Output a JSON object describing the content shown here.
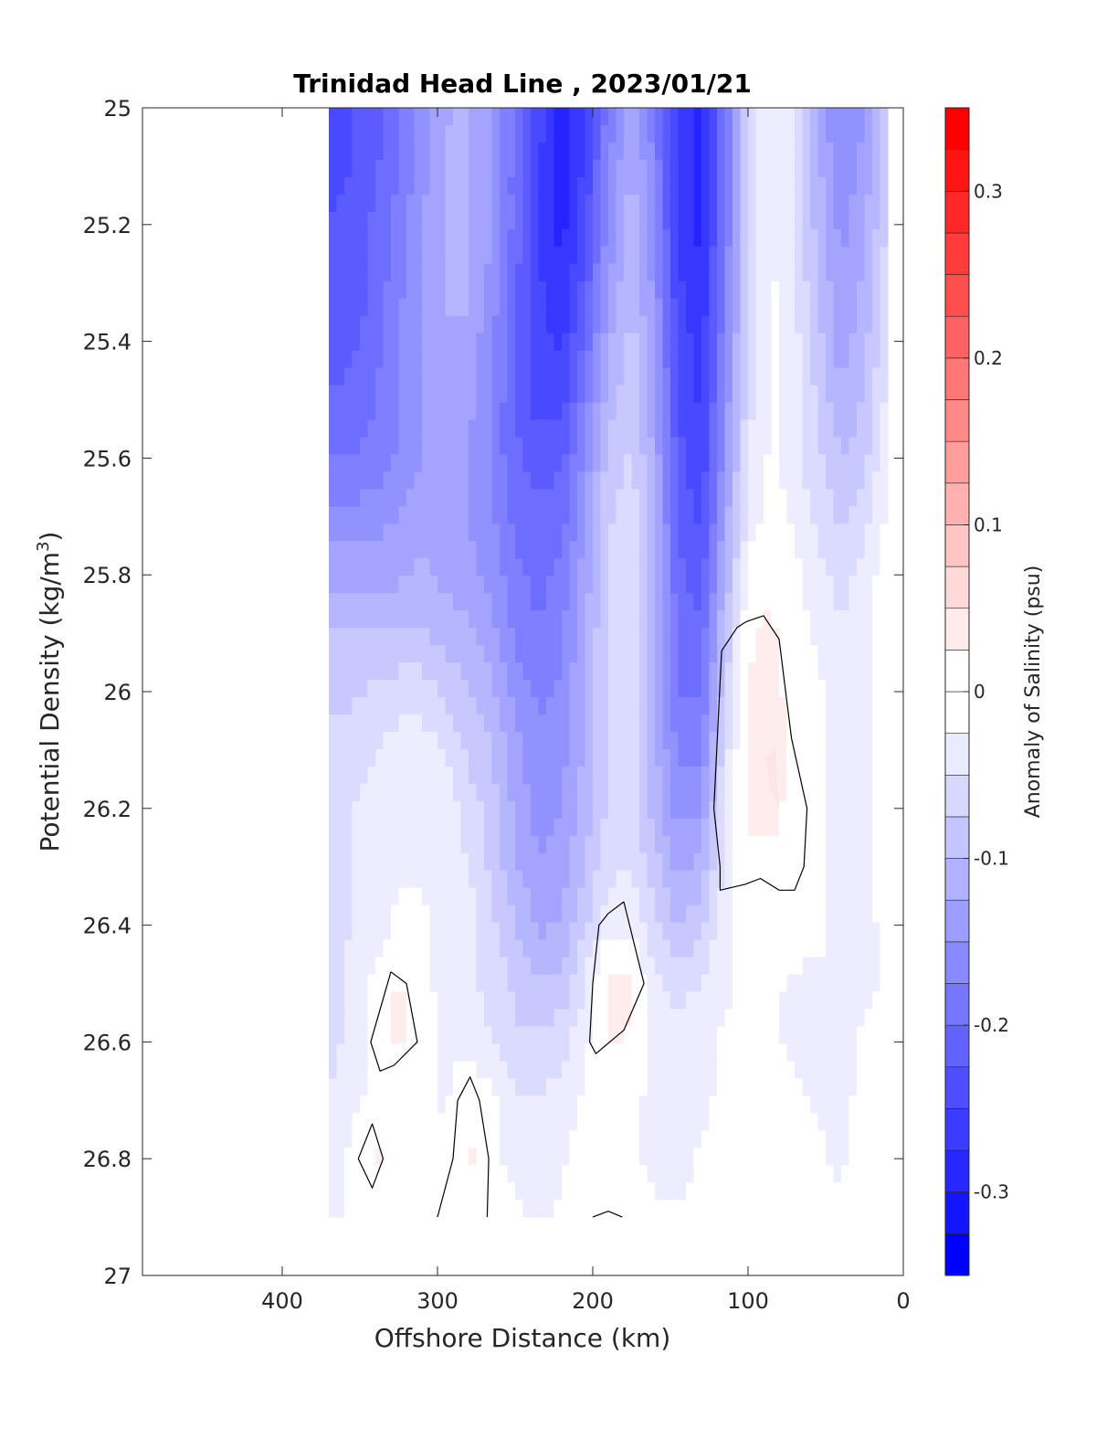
{
  "chart_data": {
    "type": "heatmap",
    "subtype": "contour-section",
    "title": "Trinidad Head Line , 2023/01/21",
    "xlabel": "Offshore Distance (km)",
    "ylabel_main": "Potential Density (kg/m",
    "ylabel_sup": "3",
    "ylabel_close": ")",
    "colorbar_label": "Anomaly of Salinity (psu)",
    "xlim": [
      490,
      0
    ],
    "x_reversed": true,
    "ylim": [
      25,
      27
    ],
    "y_reversed": true,
    "x_ticks": [
      {
        "value": 400,
        "label": "400"
      },
      {
        "value": 300,
        "label": "300"
      },
      {
        "value": 200,
        "label": "200"
      },
      {
        "value": 100,
        "label": "100"
      },
      {
        "value": 0,
        "label": "0"
      }
    ],
    "y_ticks": [
      {
        "value": 25.0,
        "label": "25"
      },
      {
        "value": 25.2,
        "label": "25.2"
      },
      {
        "value": 25.4,
        "label": "25.4"
      },
      {
        "value": 25.6,
        "label": "25.6"
      },
      {
        "value": 25.8,
        "label": "25.8"
      },
      {
        "value": 26.0,
        "label": "26"
      },
      {
        "value": 26.2,
        "label": "26.2"
      },
      {
        "value": 26.4,
        "label": "26.4"
      },
      {
        "value": 26.6,
        "label": "26.6"
      },
      {
        "value": 26.8,
        "label": "26.8"
      },
      {
        "value": 27.0,
        "label": "27"
      }
    ],
    "colorbar": {
      "clim": [
        -0.35,
        0.35
      ],
      "step": 0.025,
      "ticks": [
        {
          "value": 0.3,
          "label": "0.3"
        },
        {
          "value": 0.2,
          "label": "0.2"
        },
        {
          "value": 0.1,
          "label": "0.1"
        },
        {
          "value": 0.0,
          "label": "0"
        },
        {
          "value": -0.1,
          "label": "-0.1"
        },
        {
          "value": -0.2,
          "label": "-0.2"
        },
        {
          "value": -0.3,
          "label": "-0.3"
        }
      ],
      "colormap": "blue-white-red",
      "low_color": "#0000ff",
      "mid_color": "#ffffff",
      "high_color": "#ff0000"
    },
    "data_extent": {
      "x_offshore_km": 370,
      "x_coastal_km": 10,
      "density_bottom": 26.9
    },
    "station_x_km": [
      370,
      355,
      340,
      325,
      310,
      295,
      280,
      265,
      250,
      235,
      220,
      205,
      190,
      175,
      160,
      145,
      130,
      115,
      100,
      85,
      70,
      55,
      40,
      25,
      10
    ],
    "density_levels": [
      25.0,
      25.1,
      25.2,
      25.3,
      25.4,
      25.5,
      25.6,
      25.7,
      25.8,
      25.9,
      26.0,
      26.1,
      26.2,
      26.3,
      26.4,
      26.5,
      26.6,
      26.7,
      26.8,
      26.9
    ],
    "anomaly_profiles": [
      {
        "density": 25.0,
        "values": [
          -0.26,
          -0.25,
          -0.23,
          -0.2,
          -0.16,
          -0.13,
          -0.12,
          -0.15,
          -0.2,
          -0.26,
          -0.31,
          -0.27,
          -0.19,
          -0.13,
          -0.19,
          -0.29,
          -0.31,
          -0.2,
          -0.07,
          -0.02,
          -0.05,
          -0.13,
          -0.18,
          -0.15,
          -0.08
        ]
      },
      {
        "density": 25.1,
        "values": [
          -0.26,
          -0.25,
          -0.23,
          -0.2,
          -0.16,
          -0.12,
          -0.12,
          -0.15,
          -0.21,
          -0.27,
          -0.32,
          -0.27,
          -0.18,
          -0.12,
          -0.18,
          -0.29,
          -0.31,
          -0.2,
          -0.07,
          -0.02,
          -0.05,
          -0.12,
          -0.17,
          -0.14,
          -0.07
        ]
      },
      {
        "density": 25.2,
        "values": [
          -0.25,
          -0.24,
          -0.22,
          -0.19,
          -0.15,
          -0.12,
          -0.12,
          -0.15,
          -0.21,
          -0.27,
          -0.31,
          -0.26,
          -0.17,
          -0.11,
          -0.17,
          -0.28,
          -0.31,
          -0.2,
          -0.07,
          -0.02,
          -0.05,
          -0.11,
          -0.16,
          -0.13,
          -0.07
        ]
      },
      {
        "density": 25.3,
        "values": [
          -0.25,
          -0.24,
          -0.22,
          -0.18,
          -0.15,
          -0.12,
          -0.12,
          -0.16,
          -0.22,
          -0.27,
          -0.3,
          -0.24,
          -0.15,
          -0.1,
          -0.16,
          -0.27,
          -0.3,
          -0.19,
          -0.07,
          -0.02,
          -0.05,
          -0.1,
          -0.15,
          -0.12,
          -0.06
        ]
      },
      {
        "density": 25.4,
        "values": [
          -0.24,
          -0.23,
          -0.21,
          -0.18,
          -0.15,
          -0.13,
          -0.13,
          -0.17,
          -0.22,
          -0.27,
          -0.28,
          -0.22,
          -0.13,
          -0.09,
          -0.15,
          -0.26,
          -0.29,
          -0.18,
          -0.07,
          -0.02,
          -0.04,
          -0.09,
          -0.14,
          -0.11,
          -0.05
        ]
      },
      {
        "density": 25.5,
        "values": [
          -0.22,
          -0.22,
          -0.2,
          -0.18,
          -0.15,
          -0.14,
          -0.14,
          -0.18,
          -0.22,
          -0.26,
          -0.26,
          -0.19,
          -0.11,
          -0.08,
          -0.14,
          -0.25,
          -0.28,
          -0.17,
          -0.06,
          -0.02,
          -0.04,
          -0.08,
          -0.12,
          -0.1,
          -0.04
        ]
      },
      {
        "density": 25.6,
        "values": [
          -0.2,
          -0.2,
          -0.19,
          -0.17,
          -0.15,
          -0.14,
          -0.15,
          -0.18,
          -0.22,
          -0.24,
          -0.23,
          -0.17,
          -0.09,
          -0.07,
          -0.13,
          -0.24,
          -0.27,
          -0.16,
          -0.05,
          -0.02,
          -0.04,
          -0.07,
          -0.1,
          -0.08,
          -0.03
        ]
      },
      {
        "density": 25.7,
        "values": [
          -0.17,
          -0.17,
          -0.16,
          -0.15,
          -0.14,
          -0.14,
          -0.15,
          -0.17,
          -0.21,
          -0.22,
          -0.21,
          -0.15,
          -0.08,
          -0.06,
          -0.12,
          -0.23,
          -0.26,
          -0.14,
          -0.04,
          -0.01,
          -0.03,
          -0.06,
          -0.08,
          -0.06,
          -0.02
        ]
      },
      {
        "density": 25.8,
        "values": [
          -0.13,
          -0.13,
          -0.13,
          -0.13,
          -0.12,
          -0.13,
          -0.14,
          -0.16,
          -0.19,
          -0.21,
          -0.19,
          -0.14,
          -0.07,
          -0.05,
          -0.12,
          -0.22,
          -0.24,
          -0.12,
          -0.02,
          0.0,
          -0.02,
          -0.04,
          -0.06,
          -0.04,
          -0.01
        ]
      },
      {
        "density": 25.9,
        "values": [
          -0.1,
          -0.1,
          -0.1,
          -0.1,
          -0.1,
          -0.11,
          -0.12,
          -0.14,
          -0.18,
          -0.2,
          -0.18,
          -0.13,
          -0.07,
          -0.05,
          -0.12,
          -0.21,
          -0.22,
          -0.1,
          0.0,
          0.01,
          -0.01,
          -0.03,
          -0.05,
          -0.03,
          -0.01
        ]
      },
      {
        "density": 26.0,
        "values": [
          -0.08,
          -0.08,
          -0.07,
          -0.06,
          -0.06,
          -0.08,
          -0.1,
          -0.12,
          -0.16,
          -0.18,
          -0.17,
          -0.12,
          -0.07,
          -0.05,
          -0.12,
          -0.2,
          -0.2,
          -0.08,
          0.01,
          0.01,
          0.0,
          -0.02,
          -0.04,
          -0.03,
          -0.01
        ]
      },
      {
        "density": 26.1,
        "values": [
          -0.07,
          -0.06,
          -0.05,
          -0.04,
          -0.04,
          -0.05,
          -0.08,
          -0.1,
          -0.14,
          -0.17,
          -0.16,
          -0.12,
          -0.07,
          -0.06,
          -0.12,
          -0.18,
          -0.18,
          -0.06,
          0.01,
          0.02,
          0.0,
          -0.02,
          -0.03,
          -0.03,
          -0.01
        ]
      },
      {
        "density": 26.2,
        "values": [
          -0.06,
          -0.05,
          -0.04,
          -0.03,
          -0.03,
          -0.04,
          -0.06,
          -0.09,
          -0.13,
          -0.16,
          -0.15,
          -0.11,
          -0.07,
          -0.06,
          -0.11,
          -0.16,
          -0.15,
          -0.05,
          0.01,
          0.01,
          0.0,
          -0.02,
          -0.03,
          -0.03,
          -0.01
        ]
      },
      {
        "density": 26.3,
        "values": [
          -0.06,
          -0.05,
          -0.04,
          -0.03,
          -0.03,
          -0.03,
          -0.05,
          -0.08,
          -0.12,
          -0.15,
          -0.14,
          -0.1,
          -0.06,
          -0.05,
          -0.09,
          -0.13,
          -0.12,
          -0.04,
          0.0,
          0.0,
          -0.01,
          -0.02,
          -0.03,
          -0.03,
          -0.01
        ]
      },
      {
        "density": 26.4,
        "values": [
          -0.06,
          -0.05,
          -0.04,
          -0.02,
          -0.02,
          -0.03,
          -0.04,
          -0.07,
          -0.1,
          -0.13,
          -0.12,
          -0.08,
          -0.03,
          -0.03,
          -0.07,
          -0.1,
          -0.08,
          -0.03,
          -0.01,
          0.0,
          -0.01,
          -0.02,
          -0.03,
          -0.03,
          -0.02
        ]
      },
      {
        "density": 26.5,
        "values": [
          -0.06,
          -0.04,
          -0.02,
          0.01,
          -0.02,
          -0.03,
          -0.04,
          -0.06,
          -0.08,
          -0.1,
          -0.09,
          -0.05,
          0.01,
          0.01,
          -0.04,
          -0.06,
          -0.05,
          -0.03,
          -0.02,
          -0.02,
          -0.03,
          -0.03,
          -0.03,
          -0.03,
          -0.02
        ]
      },
      {
        "density": 26.6,
        "values": [
          -0.06,
          -0.04,
          -0.01,
          0.01,
          -0.01,
          -0.03,
          -0.03,
          -0.05,
          -0.07,
          -0.07,
          -0.06,
          -0.03,
          0.01,
          0.0,
          -0.03,
          -0.04,
          -0.03,
          -0.02,
          -0.02,
          -0.02,
          -0.03,
          -0.03,
          -0.03,
          -0.02,
          -0.02
        ]
      },
      {
        "density": 26.7,
        "values": [
          -0.05,
          -0.03,
          -0.02,
          -0.01,
          -0.02,
          -0.03,
          0.0,
          -0.02,
          -0.05,
          -0.05,
          -0.04,
          -0.02,
          -0.01,
          -0.02,
          -0.03,
          -0.04,
          -0.03,
          -0.02,
          -0.02,
          -0.02,
          -0.02,
          -0.03,
          -0.03,
          -0.02,
          -0.01
        ]
      },
      {
        "density": 26.8,
        "values": [
          -0.04,
          -0.02,
          0.01,
          -0.01,
          -0.01,
          -0.02,
          0.01,
          -0.01,
          -0.04,
          -0.04,
          -0.03,
          -0.01,
          -0.01,
          -0.02,
          -0.03,
          -0.04,
          -0.02,
          -0.02,
          -0.01,
          -0.01,
          -0.01,
          -0.02,
          -0.03,
          -0.01,
          -0.01
        ]
      },
      {
        "density": 26.9,
        "values": [
          -0.03,
          -0.02,
          -0.01,
          -0.01,
          -0.01,
          -0.01,
          0.0,
          0.0,
          -0.02,
          -0.03,
          -0.02,
          -0.01,
          0.0,
          -0.01,
          -0.02,
          -0.02,
          -0.02,
          -0.01,
          -0.01,
          -0.01,
          -0.01,
          -0.01,
          -0.02,
          -0.01,
          -0.01
        ]
      }
    ],
    "zero_contours": [
      [
        [
          101,
          25.88
        ],
        [
          90,
          25.87
        ],
        [
          80,
          25.91
        ],
        [
          72,
          26.08
        ],
        [
          62,
          26.2
        ],
        [
          64,
          26.3
        ],
        [
          70,
          26.34
        ],
        [
          80,
          26.34
        ],
        [
          92,
          26.32
        ],
        [
          102,
          26.33
        ],
        [
          118,
          26.34
        ],
        [
          118,
          26.3
        ],
        [
          122,
          26.2
        ],
        [
          117,
          25.93
        ],
        [
          107,
          25.89
        ],
        [
          101,
          25.88
        ]
      ],
      [
        [
          180,
          26.36
        ],
        [
          190,
          26.38
        ],
        [
          196,
          26.4
        ],
        [
          200,
          26.5
        ],
        [
          202,
          26.6
        ],
        [
          198,
          26.62
        ],
        [
          180,
          26.58
        ],
        [
          167,
          26.5
        ],
        [
          180,
          26.36
        ]
      ],
      [
        [
          330,
          26.48
        ],
        [
          343,
          26.6
        ],
        [
          337,
          26.65
        ],
        [
          328,
          26.64
        ],
        [
          313,
          26.6
        ],
        [
          320,
          26.5
        ],
        [
          330,
          26.48
        ]
      ],
      [
        [
          342,
          26.74
        ],
        [
          335,
          26.8
        ],
        [
          342,
          26.85
        ],
        [
          351,
          26.8
        ],
        [
          342,
          26.74
        ]
      ],
      [
        [
          300,
          26.9
        ],
        [
          290,
          26.8
        ],
        [
          287,
          26.7
        ],
        [
          279,
          26.66
        ],
        [
          273,
          26.7
        ],
        [
          267,
          26.8
        ],
        [
          268,
          26.9
        ]
      ],
      [
        [
          200,
          26.9
        ],
        [
          190,
          26.89
        ],
        [
          181,
          26.9
        ]
      ]
    ],
    "positive_patches": [
      [
        [
          82,
          26.1
        ],
        [
          89,
          26.11
        ],
        [
          86,
          26.17
        ],
        [
          80,
          26.2
        ],
        [
          82,
          26.1
        ]
      ]
    ]
  }
}
